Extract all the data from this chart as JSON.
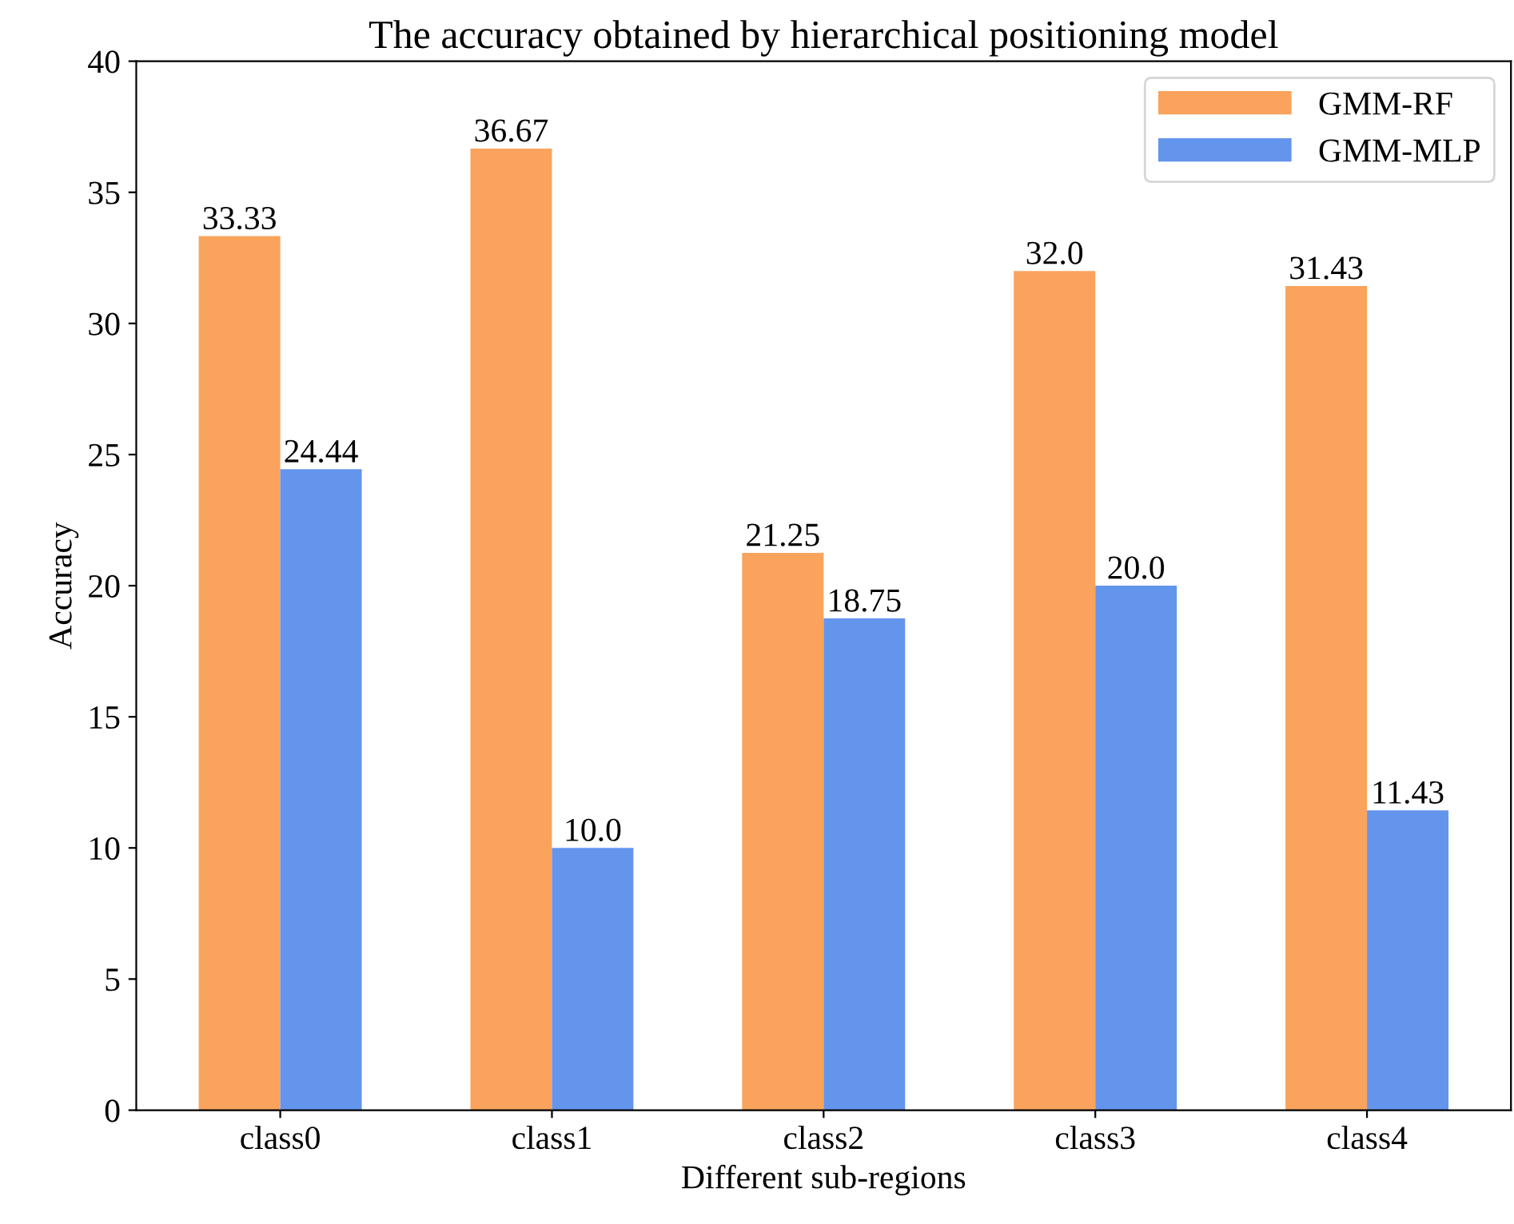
{
  "chart_data": {
    "type": "bar",
    "title": "The accuracy obtained by hierarchical positioning model",
    "xlabel": "Different sub-regions",
    "ylabel": "Accuracy",
    "categories": [
      "class0",
      "class1",
      "class2",
      "class3",
      "class4"
    ],
    "series": [
      {
        "name": "GMM-RF",
        "color": "#f9a35d",
        "values": [
          33.33,
          36.67,
          21.25,
          32.0,
          31.43
        ],
        "value_labels": [
          "33.33",
          "36.67",
          "21.25",
          "32.0",
          "31.43"
        ]
      },
      {
        "name": "GMM-MLP",
        "color": "#6495ed",
        "values": [
          24.44,
          10.0,
          18.75,
          20.0,
          11.43
        ],
        "value_labels": [
          "24.44",
          "10.0",
          "18.75",
          "20.0",
          "11.43"
        ]
      }
    ],
    "ylim": [
      0,
      40
    ],
    "yticks": [
      0,
      5,
      10,
      15,
      20,
      25,
      30,
      35,
      40
    ],
    "grid": false,
    "legend": "top right"
  }
}
